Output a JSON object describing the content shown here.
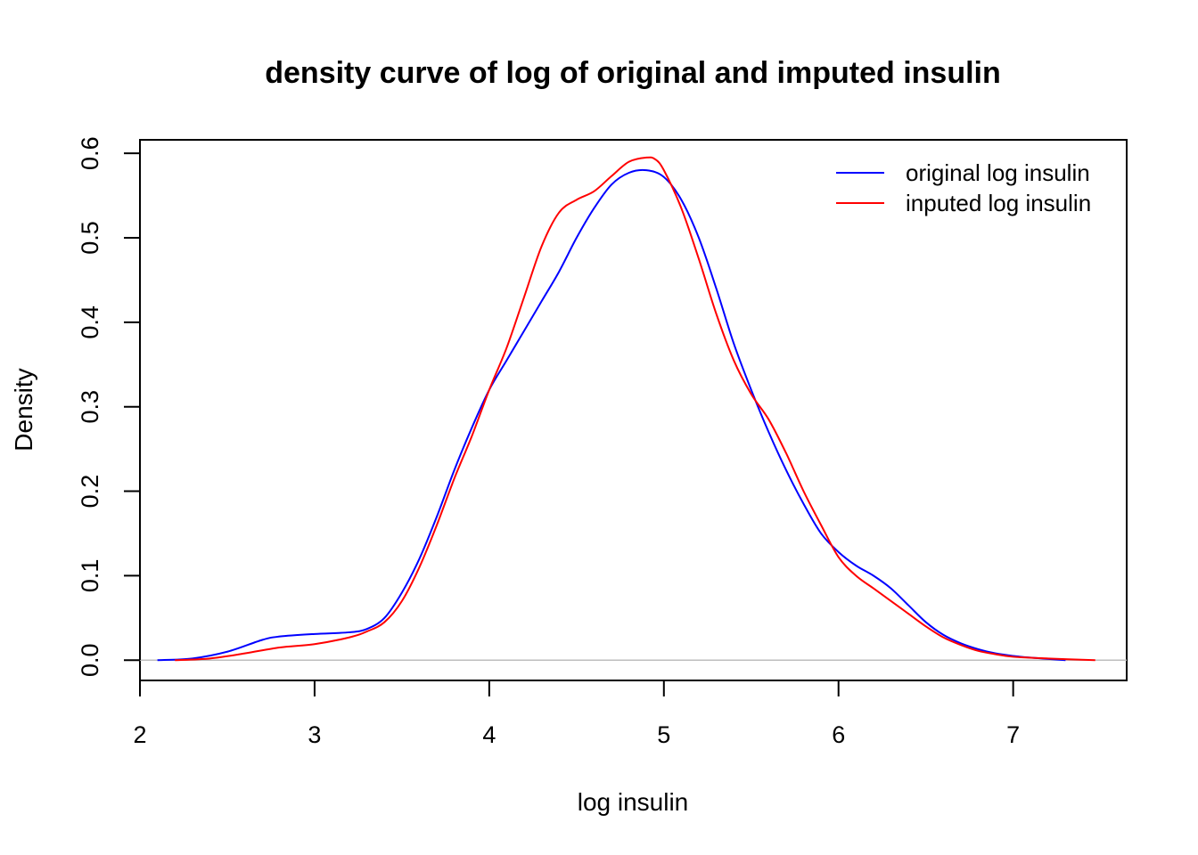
{
  "chart_data": {
    "type": "line",
    "title": "density curve of log of original and imputed insulin",
    "xlabel": "log insulin",
    "ylabel": "Density",
    "xlim": [
      2.0,
      7.65
    ],
    "ylim": [
      -0.024,
      0.616
    ],
    "x_ticks": [
      2,
      3,
      4,
      5,
      6,
      7
    ],
    "y_ticks": [
      0.0,
      0.1,
      0.2,
      0.3,
      0.4,
      0.5,
      0.6
    ],
    "x_tick_labels": [
      "2",
      "3",
      "4",
      "5",
      "6",
      "7"
    ],
    "y_tick_labels": [
      "0.0",
      "0.1",
      "0.2",
      "0.3",
      "0.4",
      "0.5",
      "0.6"
    ],
    "grid": false,
    "baseline": {
      "y": 0,
      "color": "#bebebe"
    },
    "legend": {
      "position": "top-right",
      "frame": false
    },
    "series": [
      {
        "name": "original log insulin",
        "color": "#0000ff",
        "points": [
          [
            2.1,
            0.0
          ],
          [
            2.3,
            0.002
          ],
          [
            2.5,
            0.01
          ],
          [
            2.7,
            0.024
          ],
          [
            2.8,
            0.028
          ],
          [
            3.0,
            0.031
          ],
          [
            3.2,
            0.033
          ],
          [
            3.3,
            0.037
          ],
          [
            3.4,
            0.05
          ],
          [
            3.5,
            0.08
          ],
          [
            3.6,
            0.12
          ],
          [
            3.7,
            0.17
          ],
          [
            3.8,
            0.225
          ],
          [
            3.9,
            0.275
          ],
          [
            4.0,
            0.32
          ],
          [
            4.1,
            0.355
          ],
          [
            4.2,
            0.39
          ],
          [
            4.3,
            0.425
          ],
          [
            4.4,
            0.46
          ],
          [
            4.5,
            0.5
          ],
          [
            4.6,
            0.535
          ],
          [
            4.7,
            0.563
          ],
          [
            4.8,
            0.577
          ],
          [
            4.9,
            0.58
          ],
          [
            5.0,
            0.572
          ],
          [
            5.1,
            0.545
          ],
          [
            5.2,
            0.5
          ],
          [
            5.3,
            0.44
          ],
          [
            5.4,
            0.375
          ],
          [
            5.5,
            0.32
          ],
          [
            5.6,
            0.27
          ],
          [
            5.7,
            0.225
          ],
          [
            5.8,
            0.185
          ],
          [
            5.9,
            0.15
          ],
          [
            6.0,
            0.128
          ],
          [
            6.1,
            0.112
          ],
          [
            6.2,
            0.1
          ],
          [
            6.3,
            0.085
          ],
          [
            6.4,
            0.065
          ],
          [
            6.5,
            0.045
          ],
          [
            6.6,
            0.03
          ],
          [
            6.7,
            0.02
          ],
          [
            6.8,
            0.013
          ],
          [
            6.9,
            0.008
          ],
          [
            7.0,
            0.005
          ],
          [
            7.1,
            0.003
          ],
          [
            7.3,
            0.0
          ]
        ]
      },
      {
        "name": "inputed log insulin",
        "color": "#ff0000",
        "points": [
          [
            2.2,
            0.0
          ],
          [
            2.4,
            0.002
          ],
          [
            2.6,
            0.008
          ],
          [
            2.8,
            0.015
          ],
          [
            3.0,
            0.019
          ],
          [
            3.2,
            0.027
          ],
          [
            3.3,
            0.034
          ],
          [
            3.4,
            0.045
          ],
          [
            3.5,
            0.07
          ],
          [
            3.6,
            0.11
          ],
          [
            3.7,
            0.16
          ],
          [
            3.8,
            0.215
          ],
          [
            3.9,
            0.265
          ],
          [
            4.0,
            0.32
          ],
          [
            4.1,
            0.37
          ],
          [
            4.2,
            0.43
          ],
          [
            4.3,
            0.49
          ],
          [
            4.4,
            0.53
          ],
          [
            4.5,
            0.545
          ],
          [
            4.6,
            0.555
          ],
          [
            4.7,
            0.573
          ],
          [
            4.8,
            0.59
          ],
          [
            4.9,
            0.595
          ],
          [
            4.95,
            0.593
          ],
          [
            5.0,
            0.58
          ],
          [
            5.1,
            0.535
          ],
          [
            5.2,
            0.475
          ],
          [
            5.3,
            0.41
          ],
          [
            5.4,
            0.355
          ],
          [
            5.5,
            0.315
          ],
          [
            5.6,
            0.285
          ],
          [
            5.7,
            0.245
          ],
          [
            5.8,
            0.2
          ],
          [
            5.9,
            0.16
          ],
          [
            6.0,
            0.122
          ],
          [
            6.1,
            0.1
          ],
          [
            6.2,
            0.085
          ],
          [
            6.3,
            0.07
          ],
          [
            6.4,
            0.055
          ],
          [
            6.5,
            0.04
          ],
          [
            6.6,
            0.027
          ],
          [
            6.7,
            0.018
          ],
          [
            6.8,
            0.011
          ],
          [
            6.9,
            0.007
          ],
          [
            7.0,
            0.004
          ],
          [
            7.2,
            0.002
          ],
          [
            7.47,
            0.0
          ]
        ]
      }
    ]
  }
}
